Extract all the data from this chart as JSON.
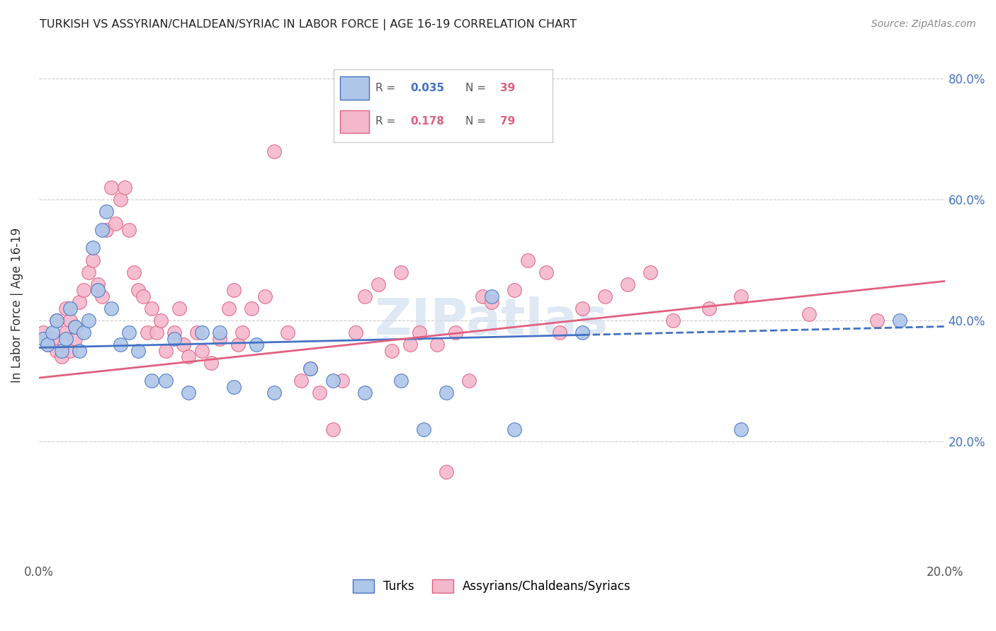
{
  "title": "TURKISH VS ASSYRIAN/CHALDEAN/SYRIAC IN LABOR FORCE | AGE 16-19 CORRELATION CHART",
  "source": "Source: ZipAtlas.com",
  "ylabel": "In Labor Force | Age 16-19",
  "xlim": [
    0.0,
    0.2
  ],
  "ylim": [
    0.0,
    0.85
  ],
  "xticks": [
    0.0,
    0.05,
    0.1,
    0.15,
    0.2
  ],
  "xticklabels": [
    "0.0%",
    "",
    "",
    "",
    "20.0%"
  ],
  "yticks": [
    0.0,
    0.2,
    0.4,
    0.6,
    0.8
  ],
  "yticklabels_left": [
    "",
    "",
    "",
    "",
    ""
  ],
  "yticklabels_right": [
    "",
    "20.0%",
    "40.0%",
    "60.0%",
    "80.0%"
  ],
  "turks_R": 0.035,
  "turks_N": 39,
  "assyrians_R": 0.178,
  "assyrians_N": 79,
  "turks_color": "#aec6e8",
  "turks_edge_color": "#4472c4",
  "assyrians_color": "#f4b8cc",
  "assyrians_edge_color": "#e06080",
  "turks_line_color": "#4472c4",
  "assyrians_line_color": "#e06080",
  "background_color": "#ffffff",
  "grid_color": "#cccccc",
  "turks_x": [
    0.001,
    0.002,
    0.003,
    0.004,
    0.005,
    0.006,
    0.007,
    0.008,
    0.009,
    0.01,
    0.011,
    0.012,
    0.013,
    0.014,
    0.015,
    0.016,
    0.018,
    0.02,
    0.022,
    0.025,
    0.028,
    0.03,
    0.033,
    0.036,
    0.04,
    0.043,
    0.048,
    0.052,
    0.06,
    0.065,
    0.072,
    0.08,
    0.085,
    0.09,
    0.1,
    0.105,
    0.12,
    0.155,
    0.19
  ],
  "turks_y": [
    0.37,
    0.36,
    0.38,
    0.4,
    0.35,
    0.37,
    0.42,
    0.39,
    0.35,
    0.38,
    0.4,
    0.52,
    0.45,
    0.55,
    0.58,
    0.42,
    0.36,
    0.38,
    0.35,
    0.3,
    0.3,
    0.37,
    0.28,
    0.38,
    0.38,
    0.29,
    0.36,
    0.28,
    0.32,
    0.3,
    0.28,
    0.3,
    0.22,
    0.28,
    0.44,
    0.22,
    0.38,
    0.22,
    0.4
  ],
  "assyrians_x": [
    0.001,
    0.002,
    0.003,
    0.004,
    0.004,
    0.005,
    0.006,
    0.006,
    0.007,
    0.007,
    0.008,
    0.008,
    0.009,
    0.01,
    0.011,
    0.012,
    0.013,
    0.014,
    0.015,
    0.016,
    0.017,
    0.018,
    0.019,
    0.02,
    0.021,
    0.022,
    0.023,
    0.024,
    0.025,
    0.026,
    0.027,
    0.028,
    0.03,
    0.031,
    0.032,
    0.033,
    0.035,
    0.036,
    0.038,
    0.04,
    0.042,
    0.043,
    0.044,
    0.045,
    0.047,
    0.05,
    0.052,
    0.055,
    0.058,
    0.06,
    0.062,
    0.065,
    0.067,
    0.07,
    0.072,
    0.075,
    0.078,
    0.08,
    0.082,
    0.084,
    0.088,
    0.09,
    0.092,
    0.095,
    0.098,
    0.1,
    0.105,
    0.108,
    0.112,
    0.115,
    0.12,
    0.125,
    0.13,
    0.135,
    0.14,
    0.148,
    0.155,
    0.17,
    0.185
  ],
  "assyrians_y": [
    0.38,
    0.36,
    0.37,
    0.35,
    0.4,
    0.34,
    0.42,
    0.38,
    0.35,
    0.4,
    0.37,
    0.39,
    0.43,
    0.45,
    0.48,
    0.5,
    0.46,
    0.44,
    0.55,
    0.62,
    0.56,
    0.6,
    0.62,
    0.55,
    0.48,
    0.45,
    0.44,
    0.38,
    0.42,
    0.38,
    0.4,
    0.35,
    0.38,
    0.42,
    0.36,
    0.34,
    0.38,
    0.35,
    0.33,
    0.37,
    0.42,
    0.45,
    0.36,
    0.38,
    0.42,
    0.44,
    0.68,
    0.38,
    0.3,
    0.32,
    0.28,
    0.22,
    0.3,
    0.38,
    0.44,
    0.46,
    0.35,
    0.48,
    0.36,
    0.38,
    0.36,
    0.15,
    0.38,
    0.3,
    0.44,
    0.43,
    0.45,
    0.5,
    0.48,
    0.38,
    0.42,
    0.44,
    0.46,
    0.48,
    0.4,
    0.42,
    0.44,
    0.41,
    0.4
  ],
  "turks_trendline_x": [
    0.0,
    0.2
  ],
  "turks_trendline_y": [
    0.355,
    0.39
  ],
  "turks_trendline_solid_end": 0.12,
  "assyrians_trendline_x": [
    0.0,
    0.2
  ],
  "assyrians_trendline_y": [
    0.305,
    0.465
  ],
  "watermark": "ZIPatlas",
  "legend_label_turks": "Turks",
  "legend_label_assyrians": "Assyrians/Chaldeans/Syriacs"
}
